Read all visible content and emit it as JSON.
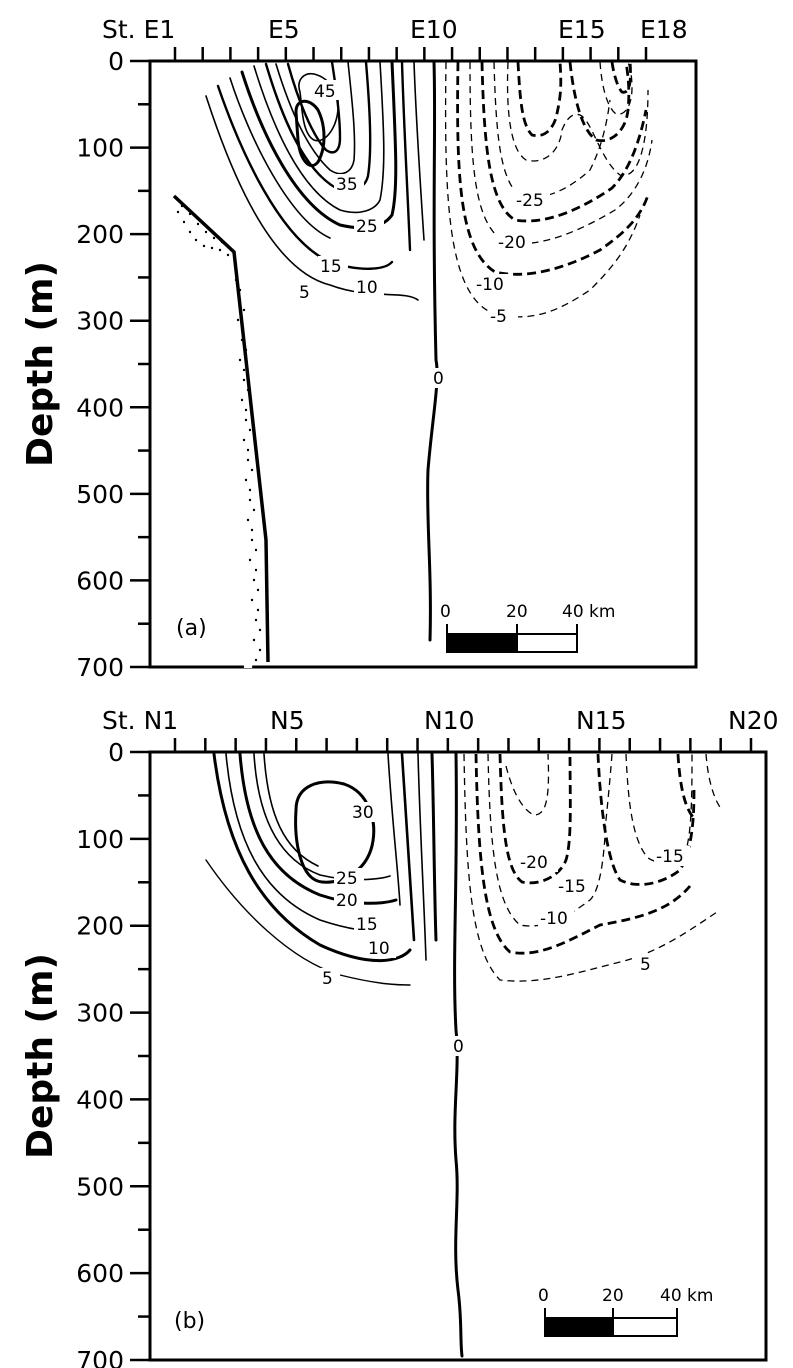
{
  "chart_data": [
    {
      "type": "contour",
      "panel_label": "(a)",
      "ylabel": "Depth (m)",
      "ylim": [
        700,
        0
      ],
      "yticks": [
        "0",
        "100",
        "200",
        "300",
        "400",
        "500",
        "600",
        "700"
      ],
      "station_first": "St. E1",
      "station_labels": [
        "E5",
        "E10",
        "E15",
        "E18"
      ],
      "station_count": 18,
      "contour_labels": [
        "45",
        "35",
        "25",
        "15",
        "10",
        "5",
        "0",
        "-25",
        "-20",
        "-10",
        "-5"
      ],
      "scale_bar": {
        "labels": [
          "0",
          "20",
          "40 km"
        ]
      }
    },
    {
      "type": "contour",
      "panel_label": "(b)",
      "ylabel": "Depth (m)",
      "ylim": [
        700,
        0
      ],
      "yticks": [
        "0",
        "100",
        "200",
        "300",
        "400",
        "500",
        "600",
        "700"
      ],
      "station_first": "St. N1",
      "station_labels": [
        "N5",
        "N10",
        "N15",
        "N20"
      ],
      "station_count": 20,
      "contour_labels": [
        "30",
        "25",
        "20",
        "15",
        "10",
        "5",
        "0",
        "-20",
        "-15",
        "-15",
        "-10",
        "5"
      ],
      "scale_bar": {
        "labels": [
          "0",
          "20",
          "40 km"
        ]
      }
    }
  ]
}
